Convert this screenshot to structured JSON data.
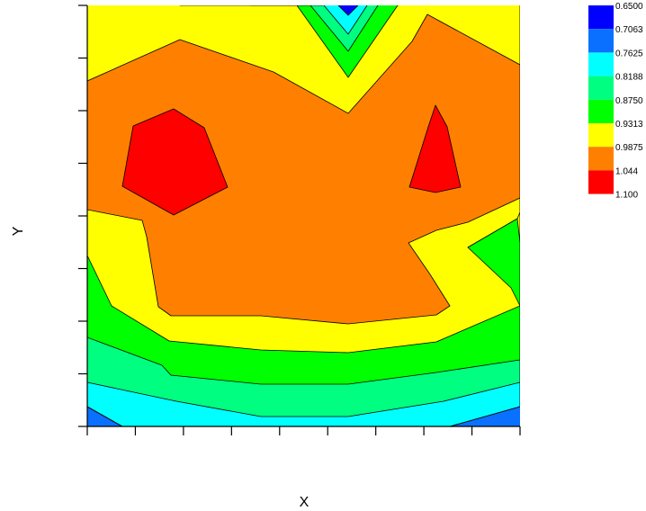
{
  "chart_data": {
    "type": "contour",
    "title": "",
    "xlabel": "X",
    "ylabel": "Y",
    "x_tick_count": 10,
    "y_tick_count": 9,
    "x_tick_labels": [],
    "y_tick_labels": [],
    "legend_position": "top-right",
    "levels": [
      {
        "label": "0.6500",
        "color": "#0000ff"
      },
      {
        "label": "0.7063",
        "color": "#0a70ff"
      },
      {
        "label": "0.7625",
        "color": "#00ffff"
      },
      {
        "label": "0.8188",
        "color": "#00ff80"
      },
      {
        "label": "0.8750",
        "color": "#00ff00"
      },
      {
        "label": "0.9313",
        "color": "#ffff00"
      },
      {
        "label": "0.9875",
        "color": "#ff8000"
      },
      {
        "label": "1.044",
        "color": "#ff0000"
      },
      {
        "label": "1.100",
        "color": ""
      }
    ]
  }
}
